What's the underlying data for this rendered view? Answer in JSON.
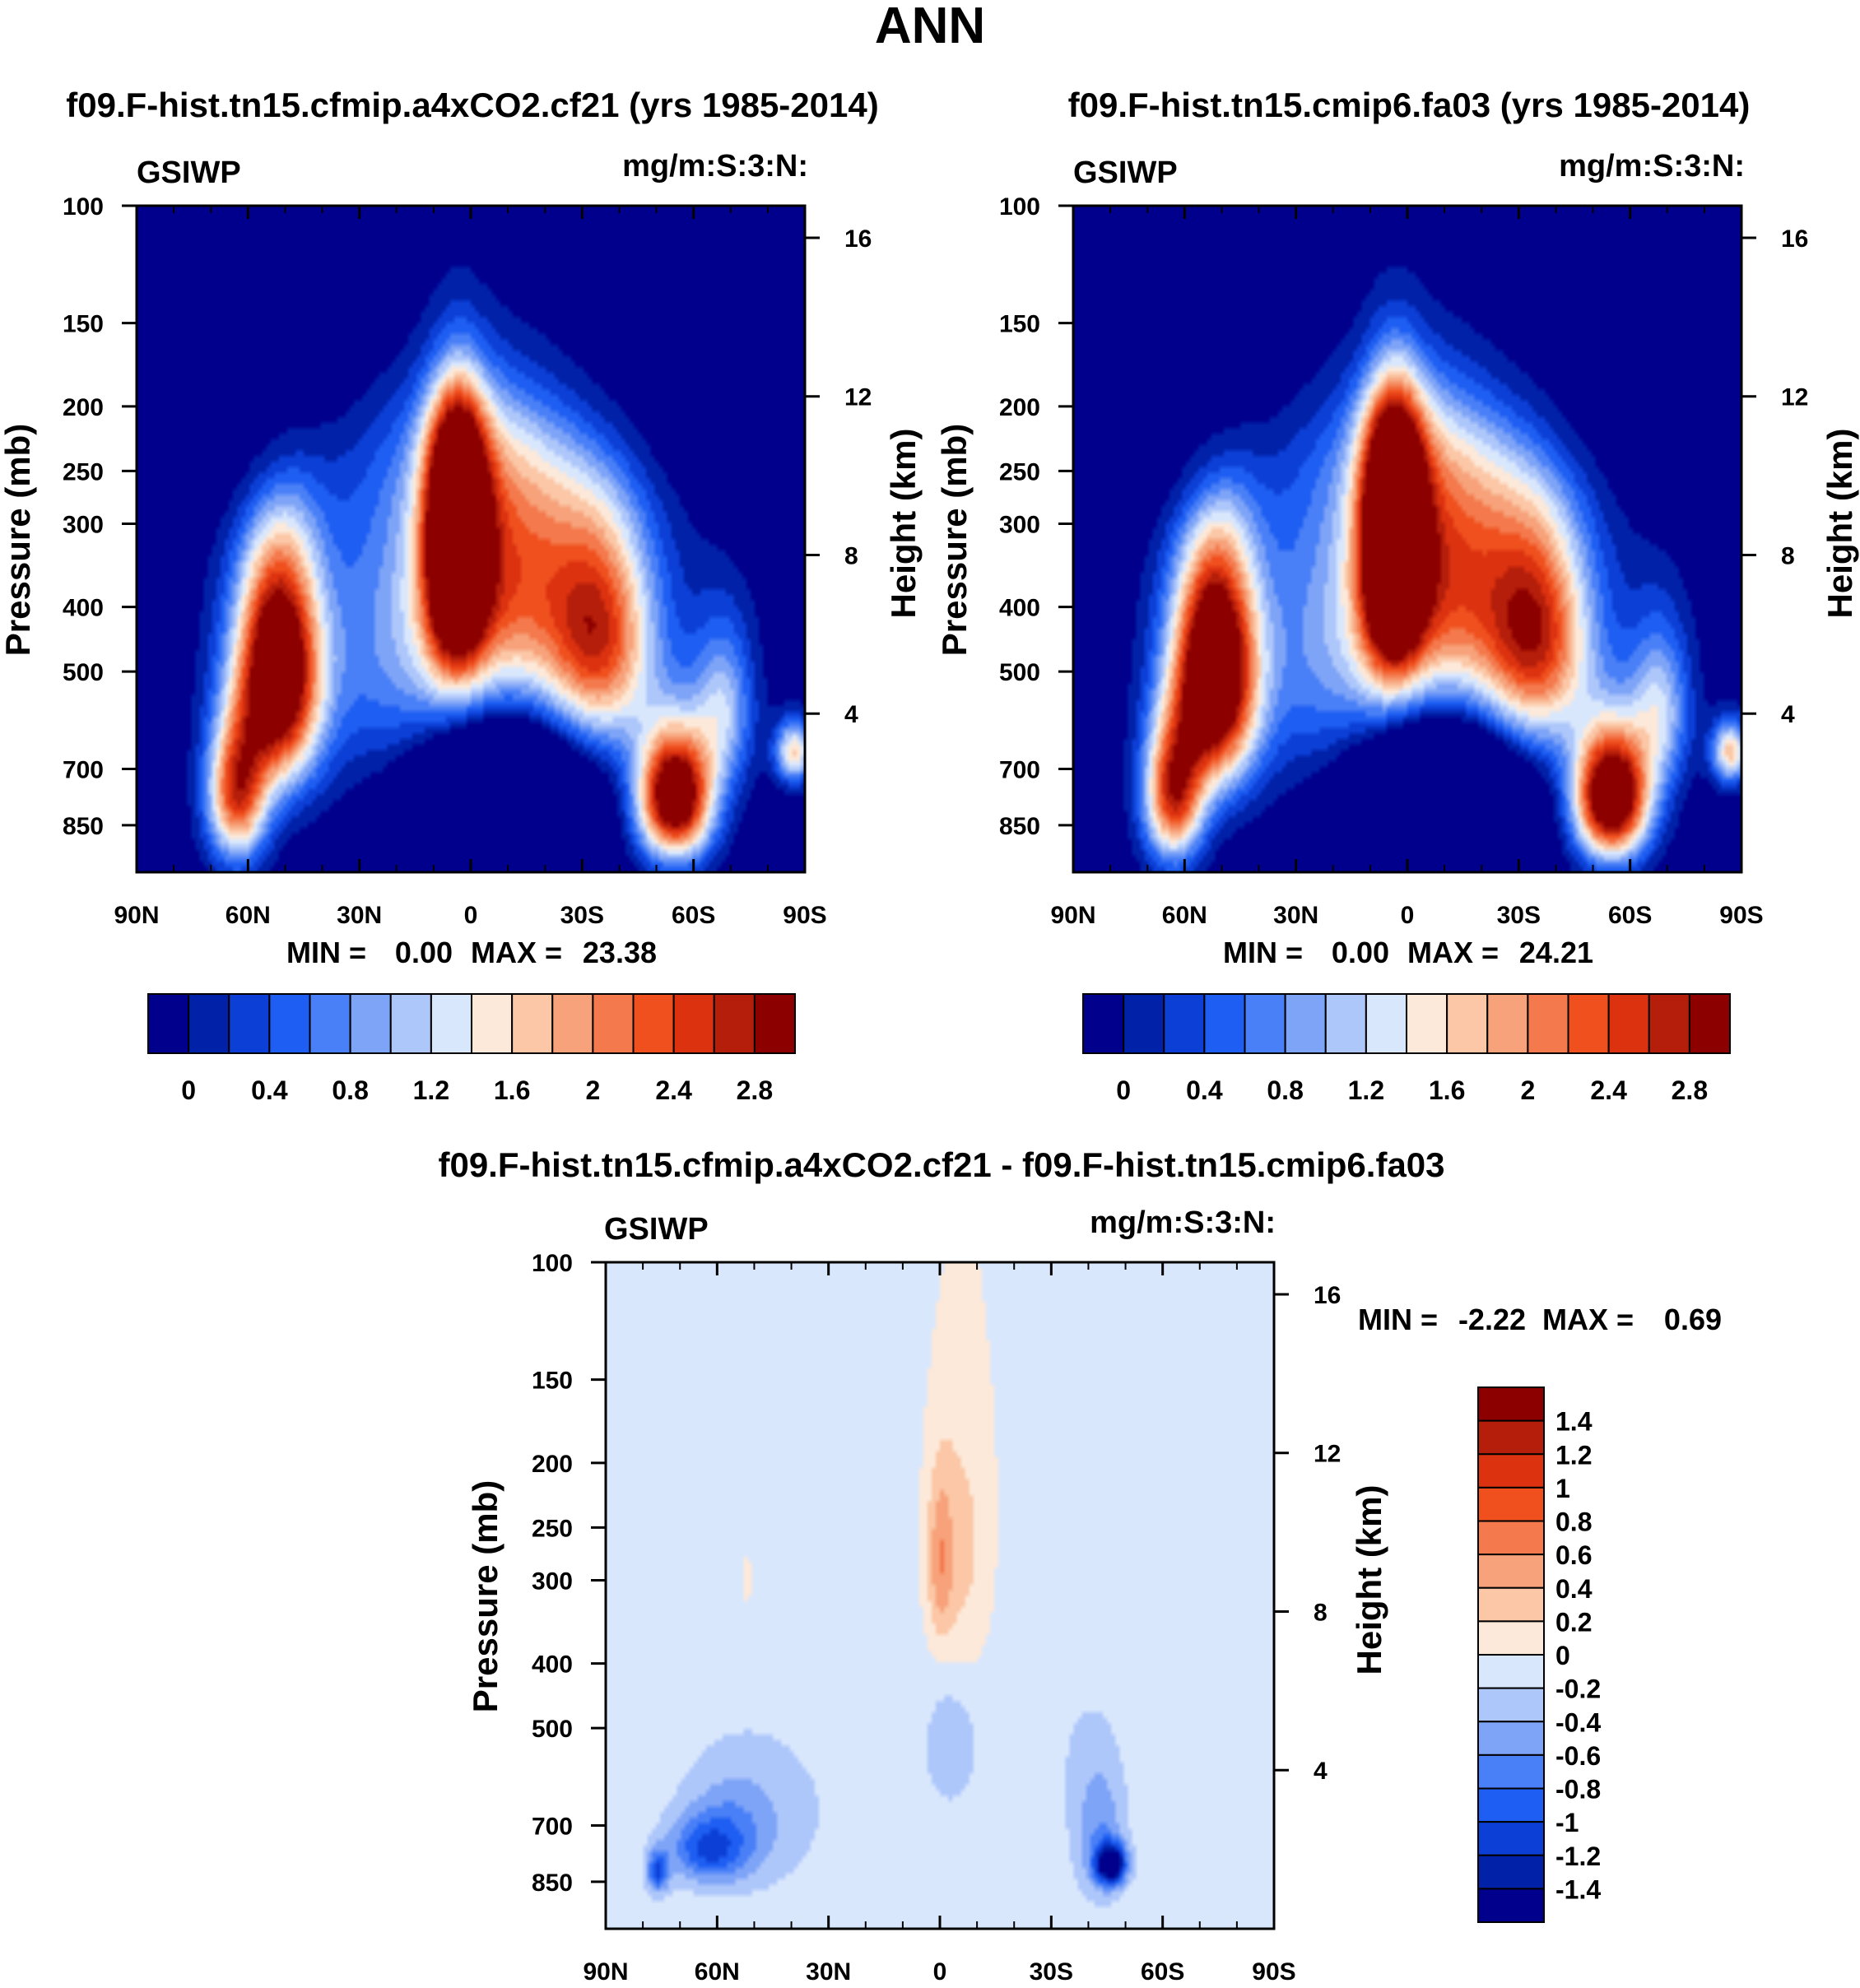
{
  "main_title": "ANN",
  "colors": {
    "abs_palette": [
      "#00008c",
      "#0021a8",
      "#0c3fd6",
      "#1e5ef2",
      "#4a80f7",
      "#7ea4f7",
      "#aec7fb",
      "#d9e7fd",
      "#fde9d9",
      "#fbc7a6",
      "#f7a27a",
      "#f4794c",
      "#f0501e",
      "#dc3210",
      "#b41e0a",
      "#8c0000"
    ],
    "diff_palette": [
      "#00008c",
      "#0021a8",
      "#0c3fd6",
      "#1e5ef2",
      "#4a80f7",
      "#7ea4f7",
      "#aec7fb",
      "#d9e7fd",
      "#fde9d9",
      "#fbc7a6",
      "#f7a27a",
      "#f4794c",
      "#f0501e",
      "#dc3210",
      "#b41e0a",
      "#8c0000"
    ]
  },
  "chart_data": [
    {
      "type": "contour",
      "title": "f09.F-hist.tn15.cfmip.a4xCO2.cf21 (yrs 1985-2014)",
      "variable": "GSIWP",
      "units": "mg/m:S:3:N:",
      "ylabel": "Pressure (mb)",
      "ylabel_right": "Height (km)",
      "x_ticks": [
        "90N",
        "60N",
        "30N",
        "0",
        "30S",
        "60S",
        "90S"
      ],
      "p_ticks": [
        100,
        150,
        200,
        250,
        300,
        400,
        500,
        700,
        850
      ],
      "p_range": [
        100,
        1000
      ],
      "height_ticks": [
        4,
        8,
        12,
        16
      ],
      "min_label": "MIN =",
      "min_value": "0.00",
      "max_label": "MAX =",
      "max_value": "23.38",
      "colorbar_labels": [
        "0",
        "0.4",
        "0.8",
        "1.2",
        "1.6",
        "2",
        "2.4",
        "2.8"
      ]
    },
    {
      "type": "contour",
      "title": "f09.F-hist.tn15.cmip6.fa03 (yrs 1985-2014)",
      "variable": "GSIWP",
      "units": "mg/m:S:3:N:",
      "ylabel": "Pressure (mb)",
      "ylabel_right": "Height (km)",
      "x_ticks": [
        "90N",
        "60N",
        "30N",
        "0",
        "30S",
        "60S",
        "90S"
      ],
      "p_ticks": [
        100,
        150,
        200,
        250,
        300,
        400,
        500,
        700,
        850
      ],
      "p_range": [
        100,
        1000
      ],
      "height_ticks": [
        4,
        8,
        12,
        16
      ],
      "min_label": "MIN =",
      "min_value": "0.00",
      "max_label": "MAX =",
      "max_value": "24.21",
      "colorbar_labels": [
        "0",
        "0.4",
        "0.8",
        "1.2",
        "1.6",
        "2",
        "2.4",
        "2.8"
      ]
    },
    {
      "type": "contour",
      "title": "f09.F-hist.tn15.cfmip.a4xCO2.cf21 - f09.F-hist.tn15.cmip6.fa03",
      "variable": "GSIWP",
      "units": "mg/m:S:3:N:",
      "ylabel": "Pressure (mb)",
      "ylabel_right": "Height (km)",
      "x_ticks": [
        "90N",
        "60N",
        "30N",
        "0",
        "30S",
        "60S",
        "90S"
      ],
      "p_ticks": [
        100,
        150,
        200,
        250,
        300,
        400,
        500,
        700,
        850
      ],
      "p_range": [
        100,
        1000
      ],
      "height_ticks": [
        4,
        8,
        12,
        16
      ],
      "min_label": "MIN =",
      "min_value": "-2.22",
      "max_label": "MAX =",
      "max_value": "0.69",
      "colorbar_labels": [
        "1.4",
        "1.2",
        "1",
        "0.8",
        "0.6",
        "0.4",
        "0.2",
        "0",
        "-0.2",
        "-0.4",
        "-0.6",
        "-0.8",
        "-1",
        "-1.2",
        "-1.4"
      ]
    }
  ]
}
